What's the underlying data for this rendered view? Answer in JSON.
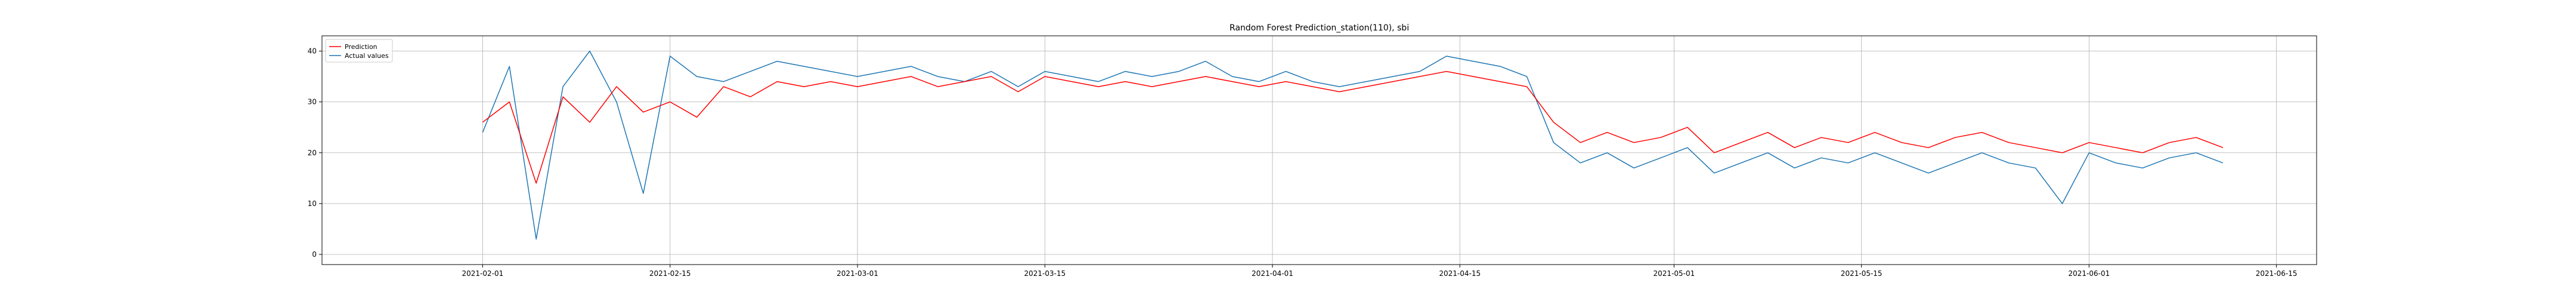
{
  "chart_data": {
    "type": "line",
    "title": "Random Forest Prediction_station(110), sbi",
    "xlabel": "",
    "ylabel": "",
    "x_range": [
      "2021-01-20",
      "2021-06-18"
    ],
    "ylim": [
      -2,
      43
    ],
    "x_ticks": [
      "2021-02-01",
      "2021-02-15",
      "2021-03-01",
      "2021-03-15",
      "2021-04-01",
      "2021-04-15",
      "2021-05-01",
      "2021-05-15",
      "2021-06-01",
      "2021-06-15"
    ],
    "y_ticks": [
      0,
      10,
      20,
      30,
      40
    ],
    "grid": true,
    "legend_position": "top-left",
    "series": [
      {
        "name": "Prediction",
        "color": "#ff0000",
        "x": [
          "2021-02-01",
          "2021-02-03",
          "2021-02-05",
          "2021-02-07",
          "2021-02-09",
          "2021-02-11",
          "2021-02-13",
          "2021-02-15",
          "2021-02-17",
          "2021-02-19",
          "2021-02-21",
          "2021-02-23",
          "2021-02-25",
          "2021-02-27",
          "2021-03-01",
          "2021-03-03",
          "2021-03-05",
          "2021-03-07",
          "2021-03-09",
          "2021-03-11",
          "2021-03-13",
          "2021-03-15",
          "2021-03-17",
          "2021-03-19",
          "2021-03-21",
          "2021-03-23",
          "2021-03-25",
          "2021-03-27",
          "2021-03-29",
          "2021-03-31",
          "2021-04-02",
          "2021-04-04",
          "2021-04-06",
          "2021-04-08",
          "2021-04-10",
          "2021-04-12",
          "2021-04-14",
          "2021-04-16",
          "2021-04-18",
          "2021-04-20",
          "2021-04-22",
          "2021-04-24",
          "2021-04-26",
          "2021-04-28",
          "2021-04-30",
          "2021-05-02",
          "2021-05-04",
          "2021-05-06",
          "2021-05-08",
          "2021-05-10",
          "2021-05-12",
          "2021-05-14",
          "2021-05-16",
          "2021-05-18",
          "2021-05-20",
          "2021-05-22",
          "2021-05-24",
          "2021-05-26",
          "2021-05-28",
          "2021-05-30",
          "2021-06-01",
          "2021-06-03",
          "2021-06-05",
          "2021-06-07",
          "2021-06-09",
          "2021-06-11"
        ],
        "y": [
          26,
          30,
          14,
          31,
          26,
          33,
          28,
          30,
          27,
          33,
          31,
          34,
          33,
          34,
          33,
          34,
          35,
          33,
          34,
          35,
          32,
          35,
          34,
          33,
          34,
          33,
          34,
          35,
          34,
          33,
          34,
          33,
          32,
          33,
          34,
          35,
          36,
          35,
          34,
          33,
          26,
          22,
          24,
          22,
          23,
          25,
          20,
          22,
          24,
          21,
          23,
          22,
          24,
          22,
          21,
          23,
          24,
          22,
          21,
          20,
          22,
          21,
          20,
          22,
          23,
          21
        ]
      },
      {
        "name": "Actual values",
        "color": "#1f77b4",
        "x": [
          "2021-02-01",
          "2021-02-03",
          "2021-02-05",
          "2021-02-07",
          "2021-02-09",
          "2021-02-11",
          "2021-02-13",
          "2021-02-15",
          "2021-02-17",
          "2021-02-19",
          "2021-02-21",
          "2021-02-23",
          "2021-02-25",
          "2021-02-27",
          "2021-03-01",
          "2021-03-03",
          "2021-03-05",
          "2021-03-07",
          "2021-03-09",
          "2021-03-11",
          "2021-03-13",
          "2021-03-15",
          "2021-03-17",
          "2021-03-19",
          "2021-03-21",
          "2021-03-23",
          "2021-03-25",
          "2021-03-27",
          "2021-03-29",
          "2021-03-31",
          "2021-04-02",
          "2021-04-04",
          "2021-04-06",
          "2021-04-08",
          "2021-04-10",
          "2021-04-12",
          "2021-04-14",
          "2021-04-16",
          "2021-04-18",
          "2021-04-20",
          "2021-04-22",
          "2021-04-24",
          "2021-04-26",
          "2021-04-28",
          "2021-04-30",
          "2021-05-02",
          "2021-05-04",
          "2021-05-06",
          "2021-05-08",
          "2021-05-10",
          "2021-05-12",
          "2021-05-14",
          "2021-05-16",
          "2021-05-18",
          "2021-05-20",
          "2021-05-22",
          "2021-05-24",
          "2021-05-26",
          "2021-05-28",
          "2021-05-30",
          "2021-06-01",
          "2021-06-03",
          "2021-06-05",
          "2021-06-07",
          "2021-06-09",
          "2021-06-11"
        ],
        "y": [
          24,
          37,
          3,
          33,
          40,
          30,
          12,
          39,
          35,
          34,
          36,
          38,
          37,
          36,
          35,
          36,
          37,
          35,
          34,
          36,
          33,
          36,
          35,
          34,
          36,
          35,
          36,
          38,
          35,
          34,
          36,
          34,
          33,
          34,
          35,
          36,
          39,
          38,
          37,
          35,
          22,
          18,
          20,
          17,
          19,
          21,
          16,
          18,
          20,
          17,
          19,
          18,
          20,
          18,
          16,
          18,
          20,
          18,
          17,
          10,
          20,
          18,
          17,
          19,
          20,
          18
        ]
      }
    ]
  }
}
